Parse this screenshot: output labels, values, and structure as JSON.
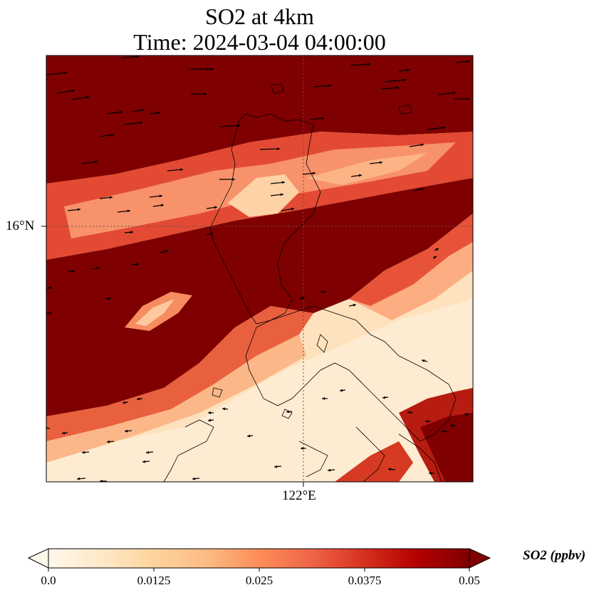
{
  "title_line1": "SO2 at 4km",
  "title_line2": "Time: 2024-03-04 04:00:00",
  "axes": {
    "lat_label": "16°N",
    "lon_label": "122°E"
  },
  "colorbar": {
    "label": "SO2 (ppbv)",
    "ticks": [
      "0.0",
      "0.0125",
      "0.025",
      "0.0375",
      "0.05"
    ],
    "min": 0.0,
    "max": 0.05,
    "extend": "both",
    "colormap": [
      "#fff7ec",
      "#fee8c8",
      "#fdd49e",
      "#fdbb84",
      "#fc8d59",
      "#ef6548",
      "#d7301f",
      "#b30000",
      "#7f0000"
    ]
  },
  "map_colors": {
    "ocean_high": "#7f0000",
    "coastline": "#000000",
    "gridline": "#555555"
  }
}
